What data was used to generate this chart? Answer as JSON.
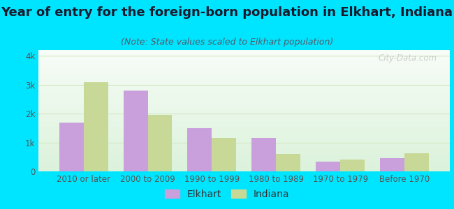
{
  "title": "Year of entry for the foreign-born population in Elkhart, Indiana",
  "subtitle": "(Note: State values scaled to Elkhart population)",
  "categories": [
    "2010 or later",
    "2000 to 2009",
    "1990 to 1999",
    "1980 to 1989",
    "1970 to 1979",
    "Before 1970"
  ],
  "elkhart_values": [
    1700,
    2800,
    1500,
    1150,
    350,
    450
  ],
  "indiana_values": [
    3100,
    1950,
    1150,
    600,
    400,
    620
  ],
  "elkhart_color": "#c9a0dc",
  "indiana_color": "#c8d896",
  "background_outer": "#00e5ff",
  "ylim": [
    0,
    4200
  ],
  "yticks": [
    0,
    1000,
    2000,
    3000,
    4000
  ],
  "ytick_labels": [
    "0",
    "1k",
    "2k",
    "3k",
    "4k"
  ],
  "bar_width": 0.38,
  "title_fontsize": 13,
  "subtitle_fontsize": 9,
  "legend_fontsize": 10,
  "tick_fontsize": 8.5,
  "tick_color": "#555555",
  "grid_color": "#d8e8c8",
  "watermark": "City-Data.com"
}
